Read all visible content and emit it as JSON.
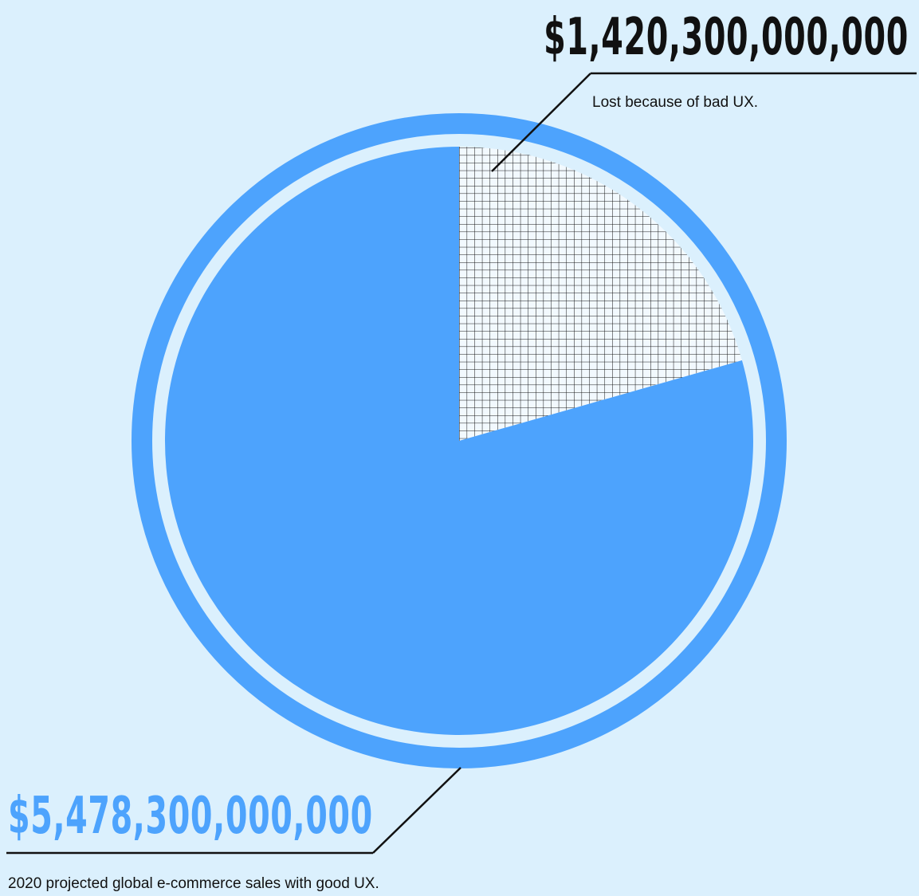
{
  "colors": {
    "background": "#dbf0fd",
    "accent": "#4da3fd",
    "ink": "#111111",
    "hatch_bg": "#f2f9fe"
  },
  "chart_data": {
    "type": "pie",
    "categories": [
      "Lost because of bad UX.",
      "2020 projected global e-commerce sales with good UX."
    ],
    "values": [
      1420300000000,
      5478300000000
    ],
    "value_labels": [
      "$1,420,300,000,000",
      "$5,478,300,000,000"
    ],
    "captions": [
      "Lost because of bad UX.",
      "2020 projected global e-commerce sales with good UX."
    ],
    "slice_styles": [
      "crosshatch",
      "solid"
    ],
    "slice_colors": [
      "#111111",
      "#4da3fd"
    ],
    "label_colors": [
      "#111111",
      "#4da3fd"
    ],
    "start_angle": "12 o'clock",
    "direction": "clockwise",
    "outer_ring": true
  }
}
